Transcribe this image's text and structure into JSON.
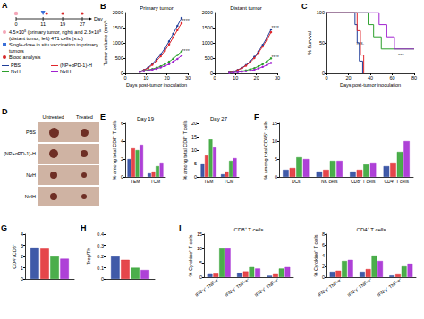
{
  "schematic": {
    "panel": "A",
    "days": [
      0,
      11,
      19,
      27
    ],
    "day_label": "Day",
    "notes": [
      {
        "text": "4.5×10⁵ (primary tumor, right) and 2.3×10⁵ (distant tumor, left) 4T1 cells (s.c.)",
        "marker": "cells"
      },
      {
        "text": "Single-dose in situ vaccination in primary tumors",
        "marker": "vaccination"
      },
      {
        "text": "Blood analysis",
        "marker": "blood"
      }
    ]
  },
  "photos": {
    "panel": "D",
    "columns": [
      "Untreated",
      "Treated"
    ]
  },
  "chart_data": [
    {
      "type": "line",
      "panel": "B",
      "title": "Primary tumor",
      "xlabel": "Days post-tumor inoculation",
      "ylabel": "Tumor volume (mm³)",
      "x": [
        7,
        9,
        11,
        13,
        15,
        17,
        19,
        21,
        23,
        25,
        27
      ],
      "xlim": [
        0,
        30
      ],
      "xticks": [
        0,
        10,
        20,
        30
      ],
      "ylim": [
        0,
        2000
      ],
      "yticks": [
        0,
        500,
        1000,
        1500,
        2000
      ],
      "grid": false,
      "marker": "circle",
      "series": [
        {
          "name": "PBS",
          "color": "#1f3d99",
          "values": [
            60,
            110,
            190,
            310,
            460,
            620,
            820,
            1050,
            1300,
            1560,
            1820
          ]
        },
        {
          "name": "(NP+αPD-1)-H",
          "color": "#e0262b",
          "values": [
            55,
            100,
            170,
            280,
            410,
            560,
            740,
            950,
            1180,
            1420,
            1650
          ]
        },
        {
          "name": "NvH",
          "color": "#2ca02c",
          "values": [
            50,
            80,
            110,
            140,
            180,
            230,
            300,
            380,
            480,
            600,
            720
          ]
        },
        {
          "name": "NvIH",
          "color": "#a020d0",
          "values": [
            45,
            70,
            95,
            120,
            150,
            190,
            240,
            300,
            380,
            470,
            580
          ]
        }
      ],
      "annotations": [
        {
          "text": "****",
          "x": 29,
          "y": 1650
        },
        {
          "text": "****",
          "x": 29,
          "y": 650
        }
      ]
    },
    {
      "type": "line",
      "title": "Distant tumor",
      "x": [
        7,
        9,
        11,
        13,
        15,
        17,
        19,
        21,
        23,
        25,
        27
      ],
      "xlim": [
        0,
        30
      ],
      "xticks": [
        0,
        10,
        20,
        30
      ],
      "ylim": [
        0,
        2000
      ],
      "yticks": [
        0,
        500,
        1000,
        1500,
        2000
      ],
      "grid": false,
      "marker": "circle",
      "series": [
        {
          "name": "PBS",
          "color": "#1f3d99",
          "values": [
            30,
            60,
            110,
            180,
            270,
            390,
            540,
            720,
            930,
            1170,
            1440
          ]
        },
        {
          "name": "(NP+αPD-1)-H",
          "color": "#e0262b",
          "values": [
            30,
            55,
            100,
            170,
            250,
            360,
            500,
            680,
            880,
            1100,
            1350
          ]
        },
        {
          "name": "NvH",
          "color": "#2ca02c",
          "values": [
            20,
            35,
            50,
            70,
            95,
            130,
            170,
            230,
            300,
            390,
            490
          ]
        },
        {
          "name": "NvIH",
          "color": "#a020d0",
          "values": [
            15,
            25,
            35,
            50,
            65,
            85,
            115,
            160,
            210,
            270,
            340
          ]
        }
      ],
      "annotations": [
        {
          "text": "****",
          "x": 29,
          "y": 1400
        },
        {
          "text": "****",
          "x": 29,
          "y": 430
        }
      ]
    },
    {
      "type": "line",
      "panel": "C",
      "xlabel": "Days post-tumor inoculation",
      "ylabel": "% Survival",
      "xlim": [
        0,
        80
      ],
      "xticks": [
        0,
        20,
        40,
        60,
        80
      ],
      "ylim": [
        0,
        100
      ],
      "yticks": [
        0,
        50,
        100
      ],
      "grid": false,
      "marker": "none",
      "line_style": "step",
      "series": [
        {
          "name": "PBS",
          "color": "#1f3d99",
          "x": [
            0,
            24,
            26,
            28,
            30,
            33
          ],
          "values": [
            100,
            100,
            80,
            50,
            20,
            0
          ]
        },
        {
          "name": "(NP+αPD-1)-H",
          "color": "#e0262b",
          "x": [
            0,
            26,
            28,
            31,
            34
          ],
          "values": [
            100,
            100,
            70,
            30,
            0
          ]
        },
        {
          "name": "NvH",
          "color": "#2ca02c",
          "x": [
            0,
            33,
            38,
            43,
            50,
            80
          ],
          "values": [
            100,
            100,
            80,
            60,
            40,
            40
          ]
        },
        {
          "name": "NvIH",
          "color": "#a020d0",
          "x": [
            0,
            40,
            48,
            55,
            62,
            80
          ],
          "values": [
            100,
            100,
            80,
            60,
            40,
            40
          ]
        }
      ],
      "annotations": [
        {
          "text": "n.s.",
          "x": 31,
          "y": 45
        },
        {
          "text": "***",
          "x": 68,
          "y": 25
        }
      ]
    },
    {
      "type": "bar",
      "panel": "E",
      "title": "Day 19",
      "ylabel": "% among total CD8⁺ T cells",
      "categories": [
        "TEM",
        "TCM"
      ],
      "ylim": [
        0,
        6
      ],
      "yticks": [
        0,
        2,
        4,
        6
      ],
      "grid": false,
      "series": [
        {
          "name": "PBS",
          "color": "#1f3d99",
          "values": [
            2.0,
            0.4
          ]
        },
        {
          "name": "(NP+αPD-1)-H",
          "color": "#e0262b",
          "values": [
            3.2,
            0.6
          ]
        },
        {
          "name": "NvH",
          "color": "#2ca02c",
          "values": [
            3.0,
            1.2
          ]
        },
        {
          "name": "NvIH",
          "color": "#a020d0",
          "values": [
            3.6,
            1.6
          ]
        }
      ]
    },
    {
      "type": "bar",
      "title": "Day 27",
      "ylabel": "% among total CD8⁺ T cells",
      "categories": [
        "TEM",
        "TCM"
      ],
      "ylim": [
        0,
        20
      ],
      "yticks": [
        0,
        5,
        10,
        15,
        20
      ],
      "grid": false,
      "series": [
        {
          "name": "PBS",
          "color": "#1f3d99",
          "values": [
            5,
            1
          ]
        },
        {
          "name": "(NP+αPD-1)-H",
          "color": "#e0262b",
          "values": [
            8,
            2
          ]
        },
        {
          "name": "NvH",
          "color": "#2ca02c",
          "values": [
            14,
            6
          ]
        },
        {
          "name": "NvIH",
          "color": "#a020d0",
          "values": [
            11,
            7
          ]
        }
      ]
    },
    {
      "type": "bar",
      "panel": "F",
      "ylabel": "% among total CD45⁺ cells",
      "categories": [
        "DCs",
        "NK cells",
        "CD8⁺ T cells",
        "CD4⁺ T cells"
      ],
      "ylim": [
        0,
        15
      ],
      "yticks": [
        0,
        5,
        10,
        15
      ],
      "grid": false,
      "series": [
        {
          "name": "PBS",
          "color": "#1f3d99",
          "values": [
            2,
            1.5,
            1.5,
            3
          ]
        },
        {
          "name": "(NP+αPD-1)-H",
          "color": "#e0262b",
          "values": [
            2.5,
            2,
            2,
            4
          ]
        },
        {
          "name": "NvH",
          "color": "#2ca02c",
          "values": [
            5.5,
            4.5,
            3.5,
            7
          ]
        },
        {
          "name": "NvIH",
          "color": "#a020d0",
          "values": [
            5,
            4.5,
            4,
            10
          ]
        }
      ]
    },
    {
      "type": "bar",
      "panel": "G",
      "ylabel": "CD4⁺/CD8⁺",
      "categories": [
        null
      ],
      "ylim": [
        0,
        4
      ],
      "yticks": [
        0,
        1,
        2,
        3,
        4
      ],
      "grid": false,
      "series": [
        {
          "name": "PBS",
          "color": "#1f3d99",
          "values": [
            2.8
          ]
        },
        {
          "name": "(NP+αPD-1)-H",
          "color": "#e0262b",
          "values": [
            2.7
          ]
        },
        {
          "name": "NvH",
          "color": "#2ca02c",
          "values": [
            2.0
          ]
        },
        {
          "name": "NvIH",
          "color": "#a020d0",
          "values": [
            1.8
          ]
        }
      ]
    },
    {
      "type": "bar",
      "panel": "H",
      "ylabel": "Treg/Th",
      "categories": [
        null
      ],
      "ylim": [
        0,
        0.4
      ],
      "yticks": [
        0,
        0.1,
        0.2,
        0.3,
        0.4
      ],
      "grid": false,
      "series": [
        {
          "name": "PBS",
          "color": "#1f3d99",
          "values": [
            0.2
          ]
        },
        {
          "name": "(NP+αPD-1)-H",
          "color": "#e0262b",
          "values": [
            0.17
          ]
        },
        {
          "name": "NvH",
          "color": "#2ca02c",
          "values": [
            0.1
          ]
        },
        {
          "name": "NvIH",
          "color": "#a020d0",
          "values": [
            0.08
          ]
        }
      ]
    },
    {
      "type": "bar",
      "panel": "I",
      "title": "CD8⁺ T cells",
      "ylabel": "% Cytokine⁺ T cells",
      "categories": [
        "IFN-γ⁺ TNF-α⁻",
        "IFN-γ⁻ TNF-α⁺",
        "IFN-γ⁺ TNF-α⁺"
      ],
      "ylim": [
        0,
        15
      ],
      "yticks": [
        0,
        5,
        10,
        15
      ],
      "grid": false,
      "series": [
        {
          "name": "PBS",
          "color": "#1f3d99",
          "values": [
            1,
            1.5,
            0.5
          ]
        },
        {
          "name": "(NP+αPD-1)-H",
          "color": "#e0262b",
          "values": [
            1.2,
            2,
            1
          ]
        },
        {
          "name": "NvH",
          "color": "#2ca02c",
          "values": [
            10,
            3.5,
            3
          ]
        },
        {
          "name": "NvIH",
          "color": "#a020d0",
          "values": [
            10,
            3,
            3.5
          ]
        }
      ]
    },
    {
      "type": "bar",
      "title": "CD4⁺ T cells",
      "ylabel": "% Cytokine⁺ T cells",
      "categories": [
        "IFN-γ⁺ TNF-α⁻",
        "IFN-γ⁻ TNF-α⁺",
        "IFN-γ⁺ TNF-α⁺"
      ],
      "ylim": [
        0,
        8
      ],
      "yticks": [
        0,
        2,
        4,
        6,
        8
      ],
      "grid": false,
      "series": [
        {
          "name": "PBS",
          "color": "#1f3d99",
          "values": [
            1,
            1,
            0.3
          ]
        },
        {
          "name": "(NP+αPD-1)-H",
          "color": "#e0262b",
          "values": [
            1.2,
            1.5,
            0.5
          ]
        },
        {
          "name": "NvH",
          "color": "#2ca02c",
          "values": [
            3,
            4,
            2
          ]
        },
        {
          "name": "NvIH",
          "color": "#a020d0",
          "values": [
            3.2,
            3,
            2.5
          ]
        }
      ]
    }
  ]
}
